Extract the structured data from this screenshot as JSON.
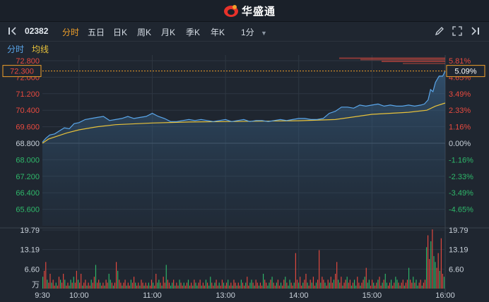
{
  "brand": {
    "name": "华盛通"
  },
  "toolbar": {
    "stock_code": "02382",
    "tabs": [
      "分时",
      "五日",
      "日K",
      "周K",
      "月K",
      "季K",
      "年K"
    ],
    "active_tab": "分时",
    "interval": "1分"
  },
  "subbar": {
    "left_label": "分时",
    "avg_label": "均线"
  },
  "colors": {
    "price_line": "#5aa6ea",
    "avg_line": "#e8c23a",
    "up": "#e84a3f",
    "down": "#2fb86a",
    "neutral": "#c9d1da",
    "accent": "#f0a02a"
  },
  "chart_data": {
    "type": "line",
    "prev_close": 68.8,
    "price_axis": {
      "ylim": [
        64.8,
        72.8
      ],
      "left_ticks": [
        "72.800",
        "72.000",
        "71.200",
        "70.400",
        "69.600",
        "68.800",
        "68.000",
        "67.200",
        "66.400",
        "65.600"
      ],
      "left_values": [
        72.8,
        72.0,
        71.2,
        70.4,
        69.6,
        68.8,
        68.0,
        67.2,
        66.4,
        65.6
      ],
      "right_ticks": [
        "5.81%",
        "4.65%",
        "3.49%",
        "2.33%",
        "1.16%",
        "0.00%",
        "-1.16%",
        "-2.33%",
        "-3.49%",
        "-4.65%"
      ]
    },
    "current_price": "72.300",
    "current_pct": "5.09%",
    "x_ticks": [
      "9:30",
      "10:00",
      "11:00",
      "13:00",
      "14:00",
      "15:00",
      "16:00"
    ],
    "x_minutes": [
      0,
      30,
      90,
      150,
      210,
      270,
      330
    ],
    "price_series": {
      "minutes": [
        0,
        3,
        6,
        10,
        14,
        18,
        22,
        26,
        30,
        35,
        40,
        45,
        50,
        55,
        60,
        65,
        70,
        75,
        80,
        85,
        90,
        95,
        100,
        105,
        110,
        115,
        120,
        125,
        130,
        135,
        140,
        145,
        150,
        155,
        160,
        165,
        170,
        175,
        180,
        185,
        190,
        195,
        200,
        205,
        210,
        215,
        220,
        225,
        230,
        235,
        240,
        245,
        250,
        255,
        260,
        265,
        270,
        275,
        280,
        285,
        290,
        295,
        300,
        305,
        310,
        313,
        316,
        318,
        320,
        322,
        325,
        328,
        330
      ],
      "values": [
        68.85,
        69.05,
        69.2,
        69.25,
        69.4,
        69.55,
        69.5,
        69.75,
        69.8,
        69.95,
        70.0,
        70.05,
        70.1,
        69.9,
        69.95,
        70.0,
        70.1,
        70.0,
        70.05,
        70.1,
        70.25,
        70.1,
        70.0,
        69.85,
        69.85,
        69.9,
        69.95,
        69.9,
        69.95,
        69.9,
        69.85,
        69.9,
        69.95,
        69.85,
        69.9,
        69.95,
        69.85,
        69.9,
        69.9,
        69.85,
        69.9,
        69.95,
        69.9,
        69.95,
        70.0,
        70.0,
        69.95,
        69.95,
        70.0,
        70.25,
        70.35,
        70.55,
        70.55,
        70.5,
        70.65,
        70.6,
        70.65,
        70.7,
        70.6,
        70.65,
        70.6,
        70.6,
        70.65,
        70.6,
        70.65,
        70.7,
        70.9,
        71.4,
        71.3,
        71.75,
        72.05,
        72.05,
        72.3
      ]
    },
    "avg_series": {
      "minutes": [
        0,
        5,
        10,
        20,
        30,
        45,
        60,
        90,
        120,
        150,
        180,
        210,
        240,
        270,
        300,
        315,
        322,
        330
      ],
      "values": [
        68.8,
        69.0,
        69.1,
        69.3,
        69.45,
        69.6,
        69.7,
        69.78,
        69.83,
        69.85,
        69.87,
        69.89,
        69.95,
        70.2,
        70.3,
        70.4,
        70.6,
        70.75
      ]
    },
    "volume_axis": {
      "ymax": 19.79,
      "ticks": [
        "19.79",
        "13.19",
        "6.60"
      ],
      "tick_values": [
        19.79,
        13.19,
        6.6
      ],
      "unit": "万"
    },
    "volume": {
      "values": [
        4,
        6,
        9,
        3,
        2,
        5,
        2,
        3,
        1,
        2,
        1,
        4,
        3,
        2,
        5,
        3,
        1,
        2,
        1,
        3,
        2,
        4,
        2,
        6,
        3,
        2,
        5,
        1,
        2,
        3,
        1,
        2,
        1,
        3,
        2,
        4,
        8,
        2,
        3,
        2,
        1,
        2,
        1,
        3,
        2,
        5,
        3,
        2,
        1,
        2,
        9,
        6,
        3,
        2,
        1,
        2,
        3,
        1,
        2,
        1,
        3,
        2,
        4,
        2,
        1,
        2,
        1,
        3,
        2,
        1,
        2,
        1,
        2,
        1,
        3,
        2,
        1,
        5,
        2,
        3,
        2,
        1,
        4,
        2,
        8,
        3,
        2,
        1,
        2,
        3,
        1,
        2,
        1,
        3,
        2,
        1,
        2,
        1,
        2,
        3,
        1,
        2,
        1,
        3,
        2,
        1,
        2,
        3,
        1,
        2,
        1,
        3,
        2,
        1,
        4,
        2,
        1,
        2,
        3,
        1,
        2,
        1,
        3,
        2,
        1,
        2,
        3,
        1,
        2,
        1,
        3,
        2,
        1,
        2,
        1,
        3,
        2,
        1,
        2,
        4,
        1,
        2,
        3,
        2,
        1,
        3,
        2,
        1,
        2,
        1,
        5,
        3,
        2,
        1,
        2,
        3,
        4,
        2,
        1,
        2,
        3,
        1,
        2,
        1,
        3,
        4,
        2,
        1,
        3,
        2,
        1,
        2,
        12,
        3,
        2,
        4,
        1,
        2,
        3,
        5,
        2,
        1,
        3,
        2,
        4,
        1,
        2,
        3,
        13,
        2,
        4,
        3,
        2,
        1,
        3,
        2,
        4,
        2,
        3,
        5,
        9,
        3,
        2,
        4,
        1,
        2,
        3,
        4,
        2,
        3,
        1,
        2,
        3,
        1,
        4,
        2,
        1,
        2,
        3,
        4,
        7,
        2,
        3,
        1,
        3,
        2,
        1,
        2,
        3,
        4,
        1,
        2,
        3,
        5,
        2,
        1,
        2,
        3,
        1,
        2,
        4,
        3,
        2,
        1,
        2,
        3,
        1,
        2,
        3,
        7,
        3,
        2,
        4,
        2,
        3,
        1,
        2,
        3,
        1,
        2,
        3,
        14,
        18,
        10,
        16,
        20,
        11,
        9,
        7,
        12,
        6,
        17,
        5,
        4
      ]
    }
  }
}
